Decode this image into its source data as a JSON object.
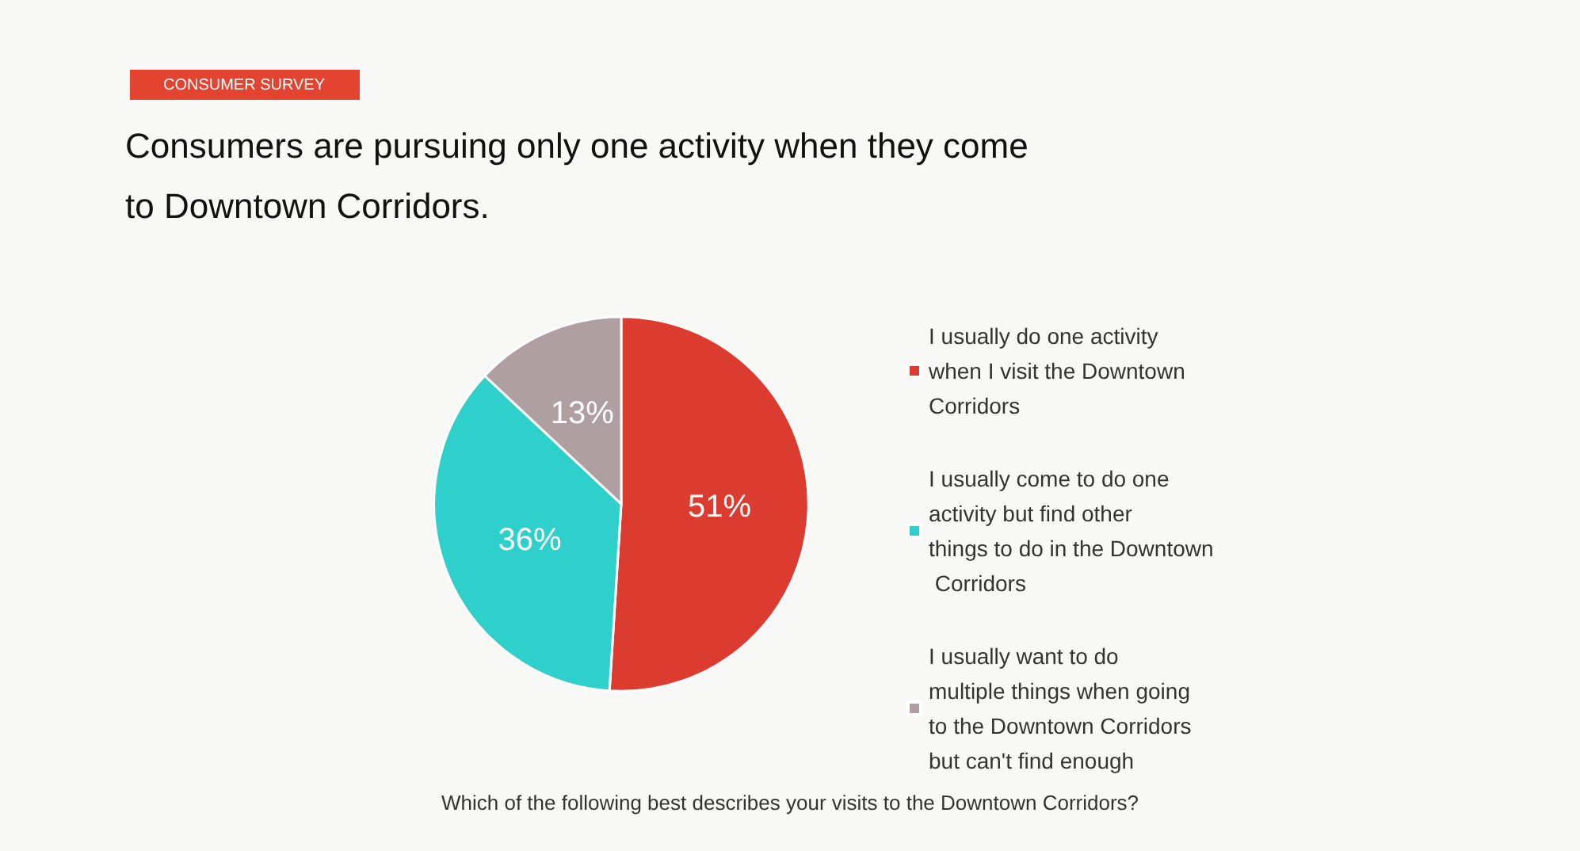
{
  "chart_data": {
    "type": "pie",
    "subtitle": "CONSUMER SURVEY",
    "title": "Consumers are pursuing only one activity when they come to Downtown Corridors.",
    "categories": [
      "I usually do one activity when I visit the Downtown Corridors",
      "I usually come to do one activity but find other things to do in the Downtown Corridors",
      "I usually want to do multiple things when going to the Downtown Corridors but can't find enough"
    ],
    "values": [
      51,
      36,
      13
    ],
    "colors": [
      "#dc3b2f",
      "#2fd0cb",
      "#b09fa1"
    ],
    "value_labels": [
      "51%",
      "36%",
      "13%"
    ],
    "legend": "right",
    "annotations": [
      "Which of the following best describes your visits to the Downtown Corridors?"
    ]
  }
}
